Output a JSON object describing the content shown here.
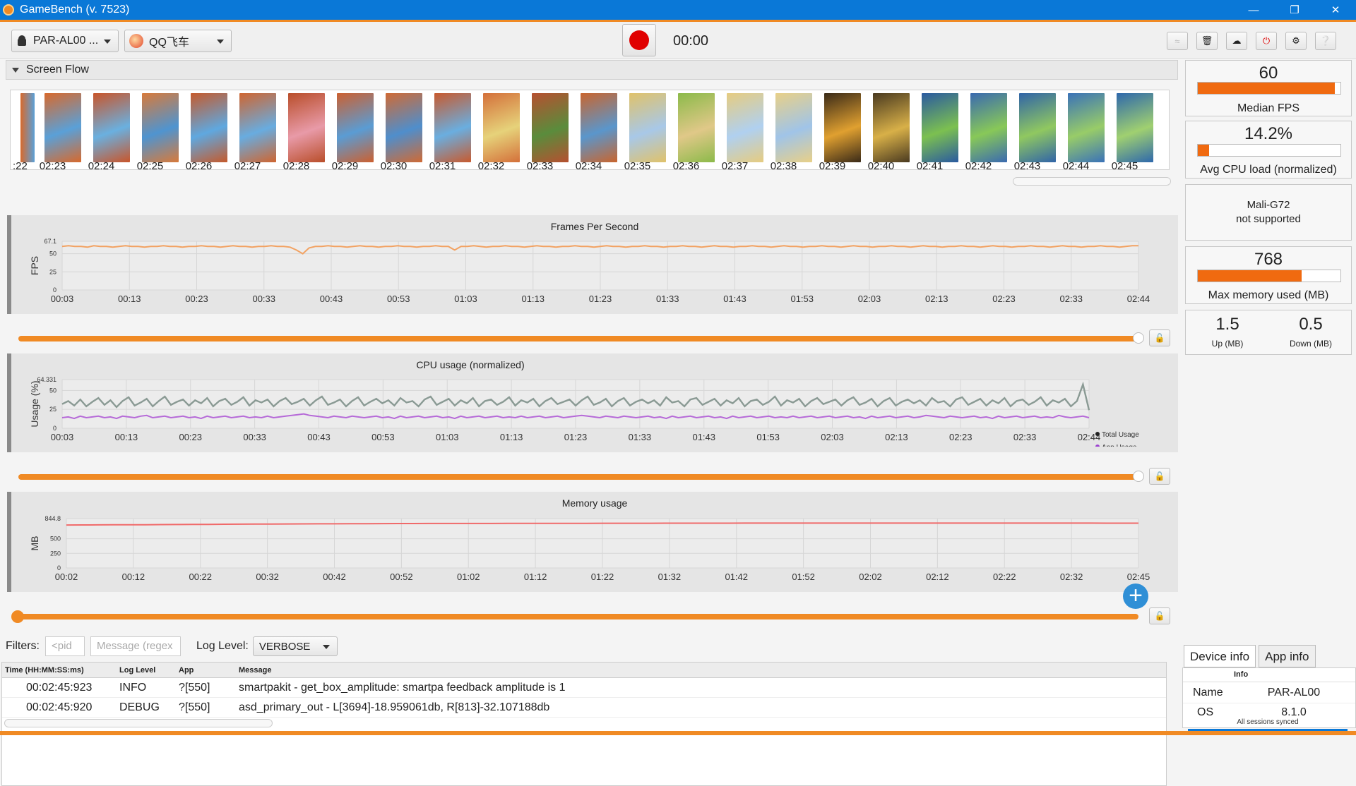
{
  "window": {
    "title": "GameBench (v. 7523)"
  },
  "toolbar": {
    "device": "PAR-AL00 ...",
    "app": "QQ飞车",
    "timer": "00:00"
  },
  "screen_flow": {
    "header": "Screen Flow",
    "times": [
      "02:23",
      "02:24",
      "02:25",
      "02:26",
      "02:27",
      "02:28",
      "02:29",
      "02:30",
      "02:31",
      "02:32",
      "02:33",
      "02:34",
      "02:35",
      "02:36",
      "02:37",
      "02:38",
      "02:39",
      "02:40",
      "02:41",
      "02:42",
      "02:43",
      "02:44",
      "02:45"
    ],
    "first_partial": ":22"
  },
  "chart_data": [
    {
      "type": "line",
      "title": "Frames Per Second",
      "ylabel": "FPS",
      "y_ticks": [
        "67.1",
        "50",
        "25",
        "0"
      ],
      "ylim": [
        0,
        67.1
      ],
      "x_ticks": [
        "00:03",
        "00:13",
        "00:23",
        "00:33",
        "00:43",
        "00:53",
        "01:03",
        "01:13",
        "01:23",
        "01:33",
        "01:43",
        "01:53",
        "02:03",
        "02:13",
        "02:23",
        "02:33",
        "02:44"
      ],
      "series": [
        {
          "values": [
            60,
            61,
            60,
            60,
            59,
            61,
            60,
            60,
            59,
            60,
            61,
            60,
            60,
            59,
            60,
            60,
            61,
            60,
            60,
            59,
            60,
            60,
            61,
            60,
            60,
            59,
            60,
            61,
            60,
            60,
            59,
            60,
            60,
            61,
            60,
            60,
            59,
            55,
            50,
            58,
            60,
            60,
            61,
            60,
            60,
            59,
            60,
            61,
            60,
            60,
            59,
            60,
            60,
            61,
            60,
            60,
            59,
            60,
            60,
            61,
            60,
            60,
            55,
            60,
            60,
            61,
            60,
            59,
            60,
            60,
            61,
            60,
            60,
            59,
            60,
            61,
            60,
            60,
            59,
            60,
            60,
            61,
            60,
            60,
            59,
            60,
            61,
            60,
            60,
            59,
            60,
            60,
            61,
            60,
            60,
            59,
            60,
            60,
            61,
            60,
            60,
            59,
            60,
            61,
            60,
            60,
            59,
            60,
            60,
            61,
            60,
            60,
            59,
            60,
            61,
            60,
            60,
            59,
            60,
            60,
            61,
            60,
            60,
            59,
            60,
            61,
            60,
            60,
            59,
            60,
            60,
            61,
            60,
            60,
            59,
            60,
            61,
            60,
            60,
            59,
            60,
            60,
            61,
            60,
            60,
            59,
            60,
            61,
            60,
            60,
            59,
            60,
            60,
            61,
            60,
            60,
            59,
            60,
            61,
            60,
            60,
            59,
            60,
            60,
            61,
            60,
            60,
            59,
            60,
            61,
            61
          ]
        }
      ]
    },
    {
      "type": "line",
      "title": "CPU usage (normalized)",
      "ylabel": "Usage (%)",
      "y_ticks": [
        "64.331",
        "50",
        "25",
        "0"
      ],
      "ylim": [
        0,
        64.331
      ],
      "x_ticks": [
        "00:03",
        "00:13",
        "00:23",
        "00:33",
        "00:43",
        "00:53",
        "01:03",
        "01:13",
        "01:23",
        "01:33",
        "01:43",
        "01:53",
        "02:03",
        "02:13",
        "02:23",
        "02:33",
        "02:44"
      ],
      "legend": [
        "Total Usage",
        "App Usage"
      ],
      "legend_placement": "right",
      "series": [
        {
          "name": "Total Usage",
          "values": [
            32,
            36,
            30,
            38,
            29,
            35,
            40,
            31,
            37,
            28,
            36,
            41,
            30,
            34,
            39,
            29,
            36,
            42,
            31,
            35,
            38,
            30,
            37,
            33,
            40,
            29,
            36,
            39,
            31,
            35,
            41,
            30,
            37,
            34,
            38,
            29,
            36,
            40,
            32,
            35,
            39,
            30,
            37,
            42,
            31,
            34,
            38,
            29,
            36,
            41,
            30,
            35,
            39,
            33,
            37,
            30,
            40,
            34,
            36,
            29,
            38,
            42,
            31,
            35,
            39,
            30,
            37,
            33,
            40,
            29,
            36,
            38,
            31,
            35,
            41,
            30,
            37,
            34,
            39,
            29,
            36,
            40,
            32,
            35,
            38,
            30,
            37,
            42,
            31,
            34,
            39,
            29,
            36,
            40,
            30,
            35,
            38,
            33,
            37,
            30,
            41,
            34,
            36,
            29,
            38,
            40,
            31,
            35,
            39,
            30,
            37,
            33,
            40,
            29,
            36,
            38,
            31,
            35,
            42,
            30,
            37,
            34,
            39,
            29,
            36,
            40,
            32,
            35,
            38,
            30,
            37,
            41,
            31,
            34,
            39,
            29,
            36,
            40,
            30,
            35,
            38,
            33,
            37,
            30,
            40,
            34,
            36,
            29,
            38,
            41,
            31,
            35,
            39,
            30,
            37,
            33,
            40,
            29,
            36,
            38,
            31,
            35,
            41,
            30,
            37,
            34,
            39,
            29,
            36,
            58,
            24
          ]
        },
        {
          "name": "App Usage",
          "values": [
            14,
            15,
            13,
            16,
            14,
            15,
            16,
            14,
            15,
            13,
            16,
            15,
            14,
            16,
            17,
            14,
            15,
            16,
            14,
            15,
            16,
            14,
            15,
            13,
            16,
            14,
            15,
            16,
            14,
            15,
            16,
            14,
            15,
            14,
            16,
            14,
            15,
            16,
            17,
            18,
            19,
            17,
            16,
            15,
            14,
            16,
            15,
            14,
            16,
            15,
            14,
            15,
            16,
            14,
            15,
            13,
            16,
            14,
            15,
            16,
            14,
            15,
            16,
            14,
            15,
            13,
            16,
            14,
            15,
            16,
            14,
            15,
            16,
            14,
            15,
            14,
            16,
            14,
            15,
            16,
            14,
            15,
            16,
            14,
            15,
            16,
            17,
            16,
            15,
            14,
            16,
            15,
            14,
            16,
            15,
            14,
            15,
            16,
            14,
            15,
            13,
            16,
            14,
            15,
            16,
            14,
            15,
            16,
            14,
            15,
            13,
            16,
            14,
            15,
            16,
            14,
            15,
            16,
            14,
            15,
            14,
            16,
            14,
            15,
            16,
            14,
            15,
            16,
            14,
            15,
            16,
            14,
            15,
            13,
            16,
            14,
            15,
            16,
            14,
            15,
            16,
            14,
            15,
            17,
            16,
            15,
            14,
            16,
            15,
            14,
            15,
            16,
            14,
            15,
            13,
            16,
            14,
            15,
            16,
            14,
            15,
            16,
            14,
            15,
            14,
            17,
            15,
            14,
            15,
            16,
            14
          ]
        }
      ]
    },
    {
      "type": "line",
      "title": "Memory usage",
      "ylabel": "MB",
      "y_ticks": [
        "844.8",
        "500",
        "250",
        "0"
      ],
      "ylim": [
        0,
        844.8
      ],
      "x_ticks": [
        "00:02",
        "00:12",
        "00:22",
        "00:32",
        "00:42",
        "00:52",
        "01:02",
        "01:12",
        "01:22",
        "01:32",
        "01:42",
        "01:52",
        "02:02",
        "02:12",
        "02:22",
        "02:32",
        "02:45"
      ],
      "series": [
        {
          "values": [
            735,
            736,
            737,
            738,
            739,
            740,
            742,
            744,
            745,
            746,
            748,
            750,
            751,
            752,
            753,
            754,
            755,
            756,
            757,
            758,
            759,
            760,
            760,
            761,
            761,
            762,
            762,
            762,
            763,
            763,
            763,
            764,
            764,
            764,
            765,
            765,
            765,
            765,
            766,
            766,
            766,
            766,
            766,
            767,
            767,
            767,
            767,
            767,
            767,
            767,
            767,
            768,
            768,
            768,
            768,
            768,
            768,
            768,
            768,
            768,
            767,
            767,
            767,
            767,
            767,
            767,
            766,
            766,
            766
          ]
        }
      ]
    }
  ],
  "stats": {
    "fps": {
      "value": "60",
      "label": "Median FPS",
      "fill": 0.96
    },
    "cpu": {
      "value": "14.2%",
      "label": "Avg CPU load (normalized)",
      "fill": 0.08
    },
    "gpu": {
      "line1": "Mali-G72",
      "line2": "not supported"
    },
    "mem": {
      "value": "768",
      "label": "Max memory used (MB)",
      "fill": 0.73
    },
    "net": {
      "up": "1.5",
      "up_label": "Up (MB)",
      "down": "0.5",
      "down_label": "Down (MB)"
    }
  },
  "filters": {
    "label": "Filters:",
    "pid_placeholder": "<pid",
    "msg_placeholder": "Message (regex",
    "log_level_label": "Log Level:",
    "log_level": "VERBOSE"
  },
  "log": {
    "headers": [
      "Time (HH:MM:SS:ms)",
      "Log Level",
      "App",
      "Message"
    ],
    "rows": [
      {
        "time": "00:02:45:923",
        "level": "INFO",
        "app": "?[550]",
        "msg": "smartpakit - get_box_amplitude: smartpa feedback amplitude is 1"
      },
      {
        "time": "00:02:45:920",
        "level": "DEBUG",
        "app": "?[550]",
        "msg": "asd_primary_out - L[3694]-18.959061db, R[813]-32.107188db"
      }
    ]
  },
  "info": {
    "tabs": [
      "Device info",
      "App info"
    ],
    "header": "Info",
    "rows": [
      {
        "k": "Name",
        "v": "PAR-AL00"
      },
      {
        "k": "OS",
        "v": "8.1.0"
      }
    ],
    "sync": "All sessions synced"
  }
}
